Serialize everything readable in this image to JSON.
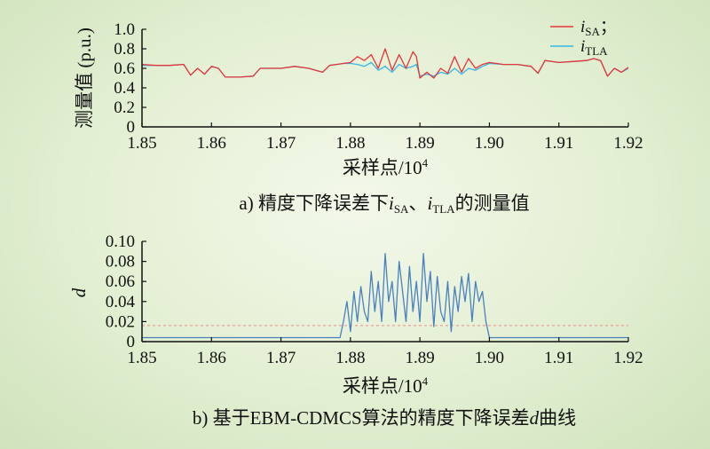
{
  "chart_data": [
    {
      "type": "line",
      "panel": "a",
      "caption": "a) 精度下降误差下iSA、iTLA的测量值",
      "caption_parts": {
        "prefix": "a) 精度下降误差下",
        "v1": "i",
        "s1": "SA",
        "sep": "、",
        "v2": "i",
        "s2": "TLA",
        "suffix": "的测量值"
      },
      "xlabel": "采样点/10⁴",
      "xlabel_parts": {
        "base": "采样点/10",
        "sup": "4"
      },
      "ylabel": "测量值 (p.u.)",
      "xlim": [
        1.85,
        1.92
      ],
      "ylim": [
        0,
        1.0
      ],
      "xticks": [
        "1.85",
        "1.86",
        "1.87",
        "1.88",
        "1.89",
        "1.90",
        "1.91",
        "1.92"
      ],
      "yticks": [
        "0",
        "0.2",
        "0.4",
        "0.6",
        "0.8",
        "1.0"
      ],
      "grid": false,
      "legend_position": "top-right",
      "series": [
        {
          "name": "iSA",
          "legend_var": "i",
          "legend_sub": "SA",
          "legend_suffix": "；",
          "color": "#e8343a",
          "x": [
            1.85,
            1.852,
            1.854,
            1.856,
            1.857,
            1.858,
            1.859,
            1.86,
            1.861,
            1.862,
            1.864,
            1.866,
            1.867,
            1.868,
            1.87,
            1.872,
            1.874,
            1.876,
            1.877,
            1.878,
            1.879,
            1.88,
            1.881,
            1.882,
            1.883,
            1.884,
            1.885,
            1.886,
            1.887,
            1.888,
            1.889,
            1.8895,
            1.89,
            1.891,
            1.892,
            1.893,
            1.894,
            1.895,
            1.896,
            1.897,
            1.898,
            1.899,
            1.9,
            1.902,
            1.904,
            1.906,
            1.907,
            1.908,
            1.91,
            1.912,
            1.914,
            1.915,
            1.916,
            1.917,
            1.918,
            1.919,
            1.92
          ],
          "y": [
            0.64,
            0.63,
            0.63,
            0.64,
            0.53,
            0.6,
            0.54,
            0.62,
            0.6,
            0.51,
            0.51,
            0.52,
            0.6,
            0.6,
            0.6,
            0.62,
            0.6,
            0.56,
            0.63,
            0.64,
            0.65,
            0.66,
            0.72,
            0.68,
            0.74,
            0.6,
            0.8,
            0.58,
            0.74,
            0.6,
            0.77,
            0.72,
            0.5,
            0.56,
            0.5,
            0.6,
            0.55,
            0.72,
            0.56,
            0.7,
            0.6,
            0.64,
            0.66,
            0.64,
            0.64,
            0.62,
            0.55,
            0.68,
            0.66,
            0.67,
            0.68,
            0.7,
            0.68,
            0.52,
            0.6,
            0.56,
            0.61
          ]
        },
        {
          "name": "iTLA",
          "legend_var": "i",
          "legend_sub": "TLA",
          "legend_suffix": "",
          "color": "#33b8e6",
          "x": [
            1.85,
            1.852,
            1.854,
            1.856,
            1.857,
            1.858,
            1.859,
            1.86,
            1.861,
            1.862,
            1.864,
            1.866,
            1.867,
            1.868,
            1.87,
            1.872,
            1.874,
            1.876,
            1.877,
            1.878,
            1.879,
            1.88,
            1.881,
            1.882,
            1.883,
            1.884,
            1.885,
            1.886,
            1.887,
            1.888,
            1.889,
            1.8895,
            1.89,
            1.891,
            1.892,
            1.893,
            1.894,
            1.895,
            1.896,
            1.897,
            1.898,
            1.899,
            1.9,
            1.902,
            1.904,
            1.906,
            1.907,
            1.908,
            1.91,
            1.912,
            1.914,
            1.915,
            1.916,
            1.917,
            1.918,
            1.919,
            1.92
          ],
          "y": [
            0.63,
            0.63,
            0.63,
            0.64,
            0.53,
            0.6,
            0.54,
            0.62,
            0.6,
            0.51,
            0.51,
            0.52,
            0.6,
            0.6,
            0.6,
            0.62,
            0.6,
            0.56,
            0.63,
            0.64,
            0.65,
            0.65,
            0.64,
            0.62,
            0.66,
            0.58,
            0.62,
            0.56,
            0.64,
            0.6,
            0.62,
            0.64,
            0.52,
            0.54,
            0.52,
            0.56,
            0.54,
            0.6,
            0.54,
            0.6,
            0.58,
            0.62,
            0.65,
            0.64,
            0.64,
            0.62,
            0.55,
            0.68,
            0.66,
            0.67,
            0.68,
            0.7,
            0.68,
            0.52,
            0.6,
            0.56,
            0.6
          ]
        }
      ]
    },
    {
      "type": "line",
      "panel": "b",
      "caption": "b) 基于EBM-CDMCS算法的精度下降误差d曲线",
      "caption_parts": {
        "prefix": "b) 基于EBM-CDMCS算法的精度下降误差",
        "var": "d",
        "suffix": "曲线"
      },
      "xlabel": "采样点/10⁴",
      "xlabel_parts": {
        "base": "采样点/10",
        "sup": "4"
      },
      "ylabel": "d",
      "xlim": [
        1.85,
        1.92
      ],
      "ylim": [
        0,
        0.1
      ],
      "xticks": [
        "1.85",
        "1.86",
        "1.87",
        "1.88",
        "1.89",
        "1.90",
        "1.91",
        "1.92"
      ],
      "yticks": [
        "0",
        "0.02",
        "0.04",
        "0.06",
        "0.08",
        "0.10"
      ],
      "grid": false,
      "threshold": {
        "value": 0.016,
        "color": "#f08a8a"
      },
      "series": [
        {
          "name": "",
          "color": "#4a80bf",
          "x": [
            1.85,
            1.858,
            1.866,
            1.874,
            1.8785,
            1.879,
            1.8795,
            1.88,
            1.8805,
            1.881,
            1.8815,
            1.882,
            1.8825,
            1.883,
            1.8835,
            1.884,
            1.8845,
            1.885,
            1.8855,
            1.886,
            1.8865,
            1.887,
            1.8875,
            1.888,
            1.8885,
            1.889,
            1.8895,
            1.89,
            1.8905,
            1.891,
            1.8915,
            1.892,
            1.8925,
            1.893,
            1.8935,
            1.894,
            1.8945,
            1.895,
            1.8955,
            1.896,
            1.8965,
            1.897,
            1.8975,
            1.898,
            1.8985,
            1.899,
            1.8995,
            1.9,
            1.902,
            1.906,
            1.91,
            1.914,
            1.92
          ],
          "y": [
            0.004,
            0.004,
            0.004,
            0.004,
            0.004,
            0.02,
            0.04,
            0.01,
            0.05,
            0.02,
            0.055,
            0.03,
            0.02,
            0.07,
            0.03,
            0.06,
            0.02,
            0.088,
            0.04,
            0.06,
            0.02,
            0.08,
            0.05,
            0.02,
            0.075,
            0.03,
            0.06,
            0.02,
            0.088,
            0.04,
            0.07,
            0.015,
            0.065,
            0.03,
            0.02,
            0.06,
            0.01,
            0.055,
            0.03,
            0.065,
            0.04,
            0.068,
            0.02,
            0.06,
            0.04,
            0.05,
            0.02,
            0.004,
            0.004,
            0.004,
            0.004,
            0.004,
            0.004
          ]
        }
      ]
    }
  ]
}
